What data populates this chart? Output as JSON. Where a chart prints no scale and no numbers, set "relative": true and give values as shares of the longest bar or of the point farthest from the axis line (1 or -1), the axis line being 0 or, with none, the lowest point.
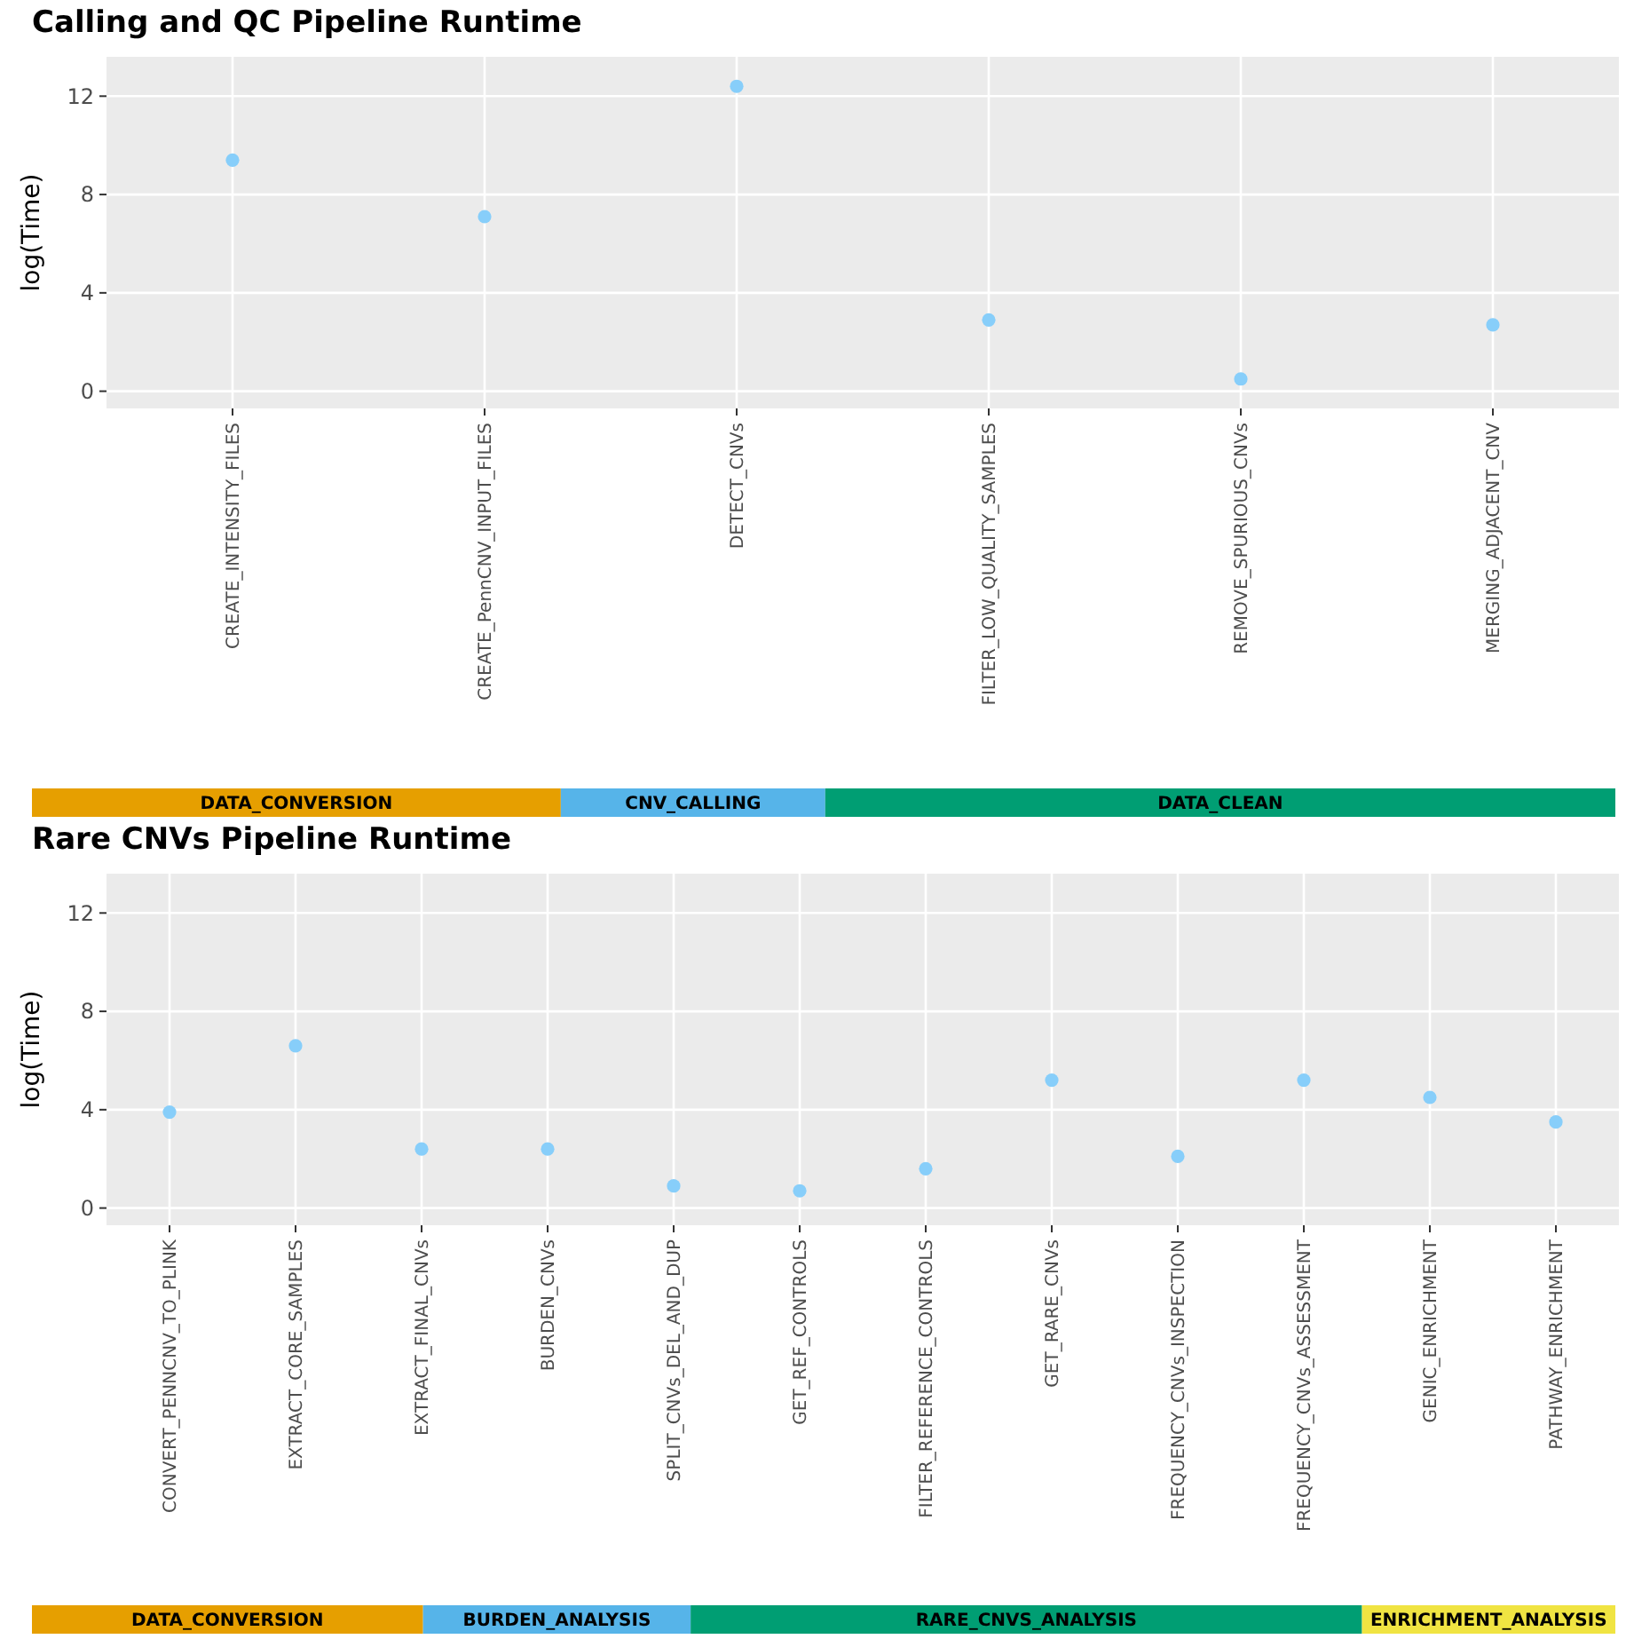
{
  "chart_data": [
    {
      "type": "scatter",
      "title": "Calling and QC Pipeline Runtime",
      "ylabel": "log(Time)",
      "categories": [
        "CREATE_INTENSITY_FILES",
        "CREATE_PennCNV_INPUT_FILES",
        "DETECT_CNVs",
        "FILTER_LOW_QUALITY_SAMPLES",
        "REMOVE_SPURIOUS_CNVs",
        "MERGING_ADJACENT_CNV"
      ],
      "series": [
        {
          "color": "#87cefa",
          "values": [
            9.4,
            7.1,
            12.4,
            2.9,
            0.5,
            2.7
          ]
        }
      ],
      "ylim": [
        -0.7,
        13.6
      ],
      "yticks": [
        0,
        4,
        8,
        12
      ],
      "grid": true,
      "marker": "circle"
    },
    {
      "type": "bar",
      "orientation": "horizontal",
      "stacked": true,
      "relative": true,
      "categories": [
        null
      ],
      "series": [
        {
          "name": "DATA_CONVERSION",
          "color": "#e69f00",
          "values": [
            0.334
          ]
        },
        {
          "name": "CNV_CALLING",
          "color": "#56b4e9",
          "values": [
            0.167
          ]
        },
        {
          "name": "DATA_CLEAN",
          "color": "#009e73",
          "values": [
            0.499
          ]
        }
      ]
    },
    {
      "type": "scatter",
      "title": "Rare CNVs Pipeline Runtime",
      "ylabel": "log(Time)",
      "categories": [
        "CONVERT_PENNCNV_TO_PLINK",
        "EXTRACT_CORE_SAMPLES",
        "EXTRACT_FINAL_CNVs",
        "BURDEN_CNVs",
        "SPLIT_CNVs_DEL_AND_DUP",
        "GET_REF_CONTROLS",
        "FILTER_REFERENCE_CONTROLS",
        "GET_RARE_CNVs",
        "FREQUENCY_CNVs_INSPECTION",
        "FREQUENCY_CNVs_ASSESSMENT",
        "GENIC_ENRICHMENT",
        "PATHWAY_ENRICHMENT"
      ],
      "series": [
        {
          "color": "#87cefa",
          "values": [
            3.9,
            6.6,
            2.4,
            2.4,
            0.9,
            0.7,
            1.6,
            5.2,
            2.1,
            5.2,
            4.5,
            3.5
          ]
        }
      ],
      "ylim": [
        -0.7,
        13.6
      ],
      "yticks": [
        0,
        4,
        8,
        12
      ],
      "grid": true,
      "marker": "circle"
    },
    {
      "type": "bar",
      "orientation": "horizontal",
      "stacked": true,
      "relative": true,
      "categories": [
        null
      ],
      "series": [
        {
          "name": "DATA_CONVERSION",
          "color": "#e69f00",
          "values": [
            0.247
          ]
        },
        {
          "name": "BURDEN_ANALYSIS",
          "color": "#56b4e9",
          "values": [
            0.169
          ]
        },
        {
          "name": "RARE_CNVS_ANALYSIS",
          "color": "#009e73",
          "values": [
            0.424
          ]
        },
        {
          "name": "ENRICHMENT_ANALYSIS",
          "color": "#f0e442",
          "values": [
            0.16
          ]
        }
      ]
    }
  ]
}
